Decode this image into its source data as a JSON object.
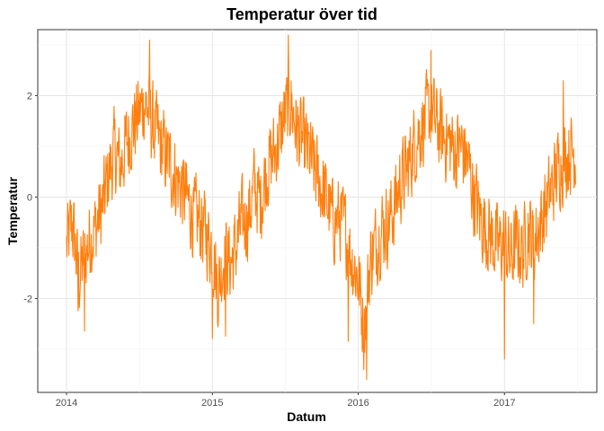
{
  "chart_data": {
    "type": "line",
    "title": "Temperatur över tid",
    "xlabel": "Datum",
    "ylabel": "Temperatur",
    "line_color": "#FF7F0E",
    "grid": true,
    "x_range": [
      "2013-10-21",
      "2017-08-20"
    ],
    "ylim": [
      -3.85,
      3.3
    ],
    "x_ticks": [
      {
        "date": "2014-01-01",
        "label": "2014"
      },
      {
        "date": "2015-01-01",
        "label": "2015"
      },
      {
        "date": "2016-01-01",
        "label": "2016"
      },
      {
        "date": "2017-01-01",
        "label": "2017"
      }
    ],
    "y_ticks": [
      {
        "value": -2,
        "label": "-2"
      },
      {
        "value": 0,
        "label": "0"
      },
      {
        "value": 2,
        "label": "2"
      }
    ],
    "series": [
      {
        "x": [
          "2014-01-01",
          "2014-01-15",
          "2014-02-01",
          "2014-02-15",
          "2014-03-01",
          "2014-03-15",
          "2014-04-01",
          "2014-04-15",
          "2014-05-01",
          "2014-05-15",
          "2014-06-01",
          "2014-06-15",
          "2014-07-01",
          "2014-07-15",
          "2014-08-01",
          "2014-08-15",
          "2014-09-01",
          "2014-09-15",
          "2014-10-01",
          "2014-10-15",
          "2014-11-01",
          "2014-11-15",
          "2014-12-01",
          "2014-12-15",
          "2015-01-01",
          "2015-01-15",
          "2015-02-01",
          "2015-02-15",
          "2015-03-01",
          "2015-03-15",
          "2015-04-01",
          "2015-04-15",
          "2015-05-01",
          "2015-05-15",
          "2015-06-01",
          "2015-06-15",
          "2015-07-01",
          "2015-07-15",
          "2015-08-01",
          "2015-08-15",
          "2015-09-01",
          "2015-09-15",
          "2015-10-01",
          "2015-10-15",
          "2015-11-01",
          "2015-11-15",
          "2015-12-01",
          "2015-12-15",
          "2016-01-01",
          "2016-01-15",
          "2016-02-01",
          "2016-02-15",
          "2016-03-01",
          "2016-03-15",
          "2016-04-01",
          "2016-04-15",
          "2016-05-01",
          "2016-05-15",
          "2016-06-01",
          "2016-06-15",
          "2016-07-01",
          "2016-07-15",
          "2016-08-01",
          "2016-08-15",
          "2016-09-01",
          "2016-09-15",
          "2016-10-01",
          "2016-10-15",
          "2016-11-01",
          "2016-11-15",
          "2016-12-01",
          "2016-12-15",
          "2017-01-01",
          "2017-01-15",
          "2017-02-01",
          "2017-02-15",
          "2017-03-01",
          "2017-03-15",
          "2017-04-01",
          "2017-04-15",
          "2017-05-01",
          "2017-05-15",
          "2017-06-01",
          "2017-06-15"
        ],
        "y": [
          -1.0,
          -0.5,
          -1.6,
          -1.2,
          -0.8,
          -0.6,
          -0.2,
          0.4,
          0.9,
          0.6,
          1.1,
          1.4,
          1.6,
          1.9,
          1.5,
          1.2,
          0.9,
          0.7,
          0.4,
          0.2,
          -0.1,
          -0.4,
          -0.5,
          -0.7,
          -1.0,
          -1.8,
          -1.1,
          -1.3,
          -1.0,
          -0.5,
          -0.4,
          0.2,
          -0.1,
          0.5,
          0.8,
          1.1,
          1.6,
          1.9,
          1.3,
          1.1,
          0.8,
          0.5,
          0.2,
          -0.1,
          -0.5,
          -0.4,
          -0.7,
          -1.2,
          -1.6,
          -2.6,
          -1.2,
          -0.9,
          -0.6,
          -0.5,
          -0.2,
          0.3,
          0.5,
          0.9,
          1.3,
          1.5,
          1.7,
          1.4,
          1.2,
          1.1,
          0.9,
          1.0,
          0.7,
          0.1,
          -0.4,
          -0.6,
          -0.8,
          -1.0,
          -0.9,
          -1.2,
          -0.9,
          -1.1,
          -0.6,
          -0.9,
          -0.5,
          -0.2,
          0.2,
          0.6,
          0.8,
          0.9
        ],
        "spikes": [
          {
            "x": "2014-01-30",
            "y": -2.25
          },
          {
            "x": "2014-02-15",
            "y": -2.65
          },
          {
            "x": "2014-07-28",
            "y": 3.1
          },
          {
            "x": "2015-01-01",
            "y": -2.8
          },
          {
            "x": "2015-02-03",
            "y": -2.75
          },
          {
            "x": "2015-07-10",
            "y": 3.2
          },
          {
            "x": "2015-12-07",
            "y": -2.85
          },
          {
            "x": "2016-01-22",
            "y": -3.6
          },
          {
            "x": "2016-07-01",
            "y": 2.9
          },
          {
            "x": "2017-01-01",
            "y": -3.2
          },
          {
            "x": "2017-03-15",
            "y": -2.5
          },
          {
            "x": "2017-05-28",
            "y": 2.3
          }
        ]
      }
    ]
  }
}
